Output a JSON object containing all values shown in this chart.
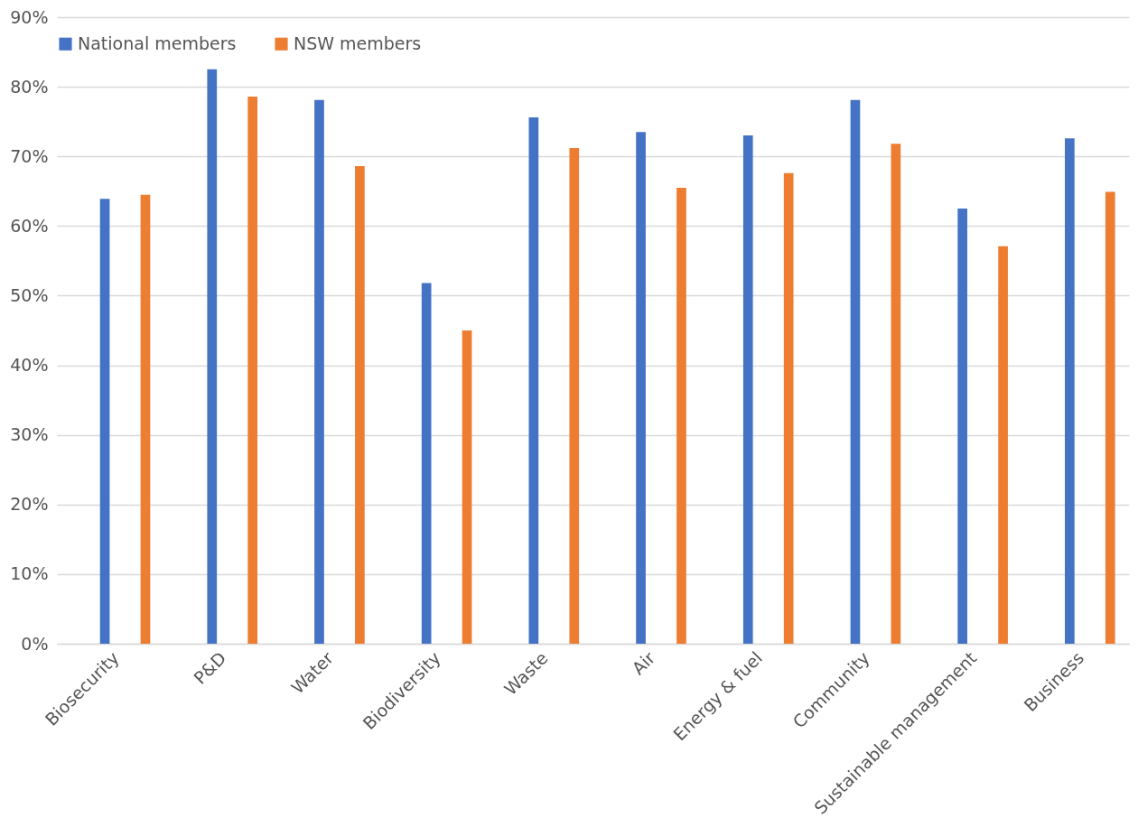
{
  "chart_data": {
    "type": "bar",
    "categories": [
      "Biosecurity",
      "P&D",
      "Water",
      "Biodiversity",
      "Waste",
      "Air",
      "Energy & fuel",
      "Community",
      "Sustainable management",
      "Business"
    ],
    "series": [
      {
        "name": "National members",
        "color": "#4472c4",
        "values": [
          63.9,
          82.5,
          78.1,
          51.8,
          75.6,
          73.5,
          73.0,
          78.1,
          62.5,
          72.6
        ]
      },
      {
        "name": "NSW members",
        "color": "#ed7d31",
        "values": [
          64.5,
          78.6,
          68.6,
          45.0,
          71.2,
          65.5,
          67.6,
          71.8,
          57.1,
          64.9
        ]
      }
    ],
    "ylim": [
      0,
      90
    ],
    "yticks": [
      {
        "value": 0,
        "label": "0%"
      },
      {
        "value": 10,
        "label": "10%"
      },
      {
        "value": 20,
        "label": "20%"
      },
      {
        "value": 30,
        "label": "30%"
      },
      {
        "value": 40,
        "label": "40%"
      },
      {
        "value": 50,
        "label": "50%"
      },
      {
        "value": 60,
        "label": "60%"
      },
      {
        "value": 70,
        "label": "70%"
      },
      {
        "value": 80,
        "label": "80%"
      },
      {
        "value": 90,
        "label": "90%"
      }
    ],
    "grid": "y",
    "legend": "top"
  }
}
